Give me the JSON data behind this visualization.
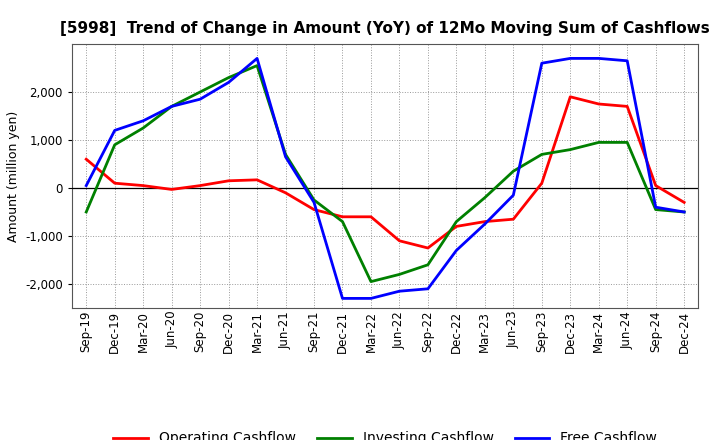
{
  "title": "[5998]  Trend of Change in Amount (YoY) of 12Mo Moving Sum of Cashflows",
  "ylabel": "Amount (million yen)",
  "x_labels": [
    "Sep-19",
    "Dec-19",
    "Mar-20",
    "Jun-20",
    "Sep-20",
    "Dec-20",
    "Mar-21",
    "Jun-21",
    "Sep-21",
    "Dec-21",
    "Mar-22",
    "Jun-22",
    "Sep-22",
    "Dec-22",
    "Mar-23",
    "Jun-23",
    "Sep-23",
    "Dec-23",
    "Mar-24",
    "Jun-24",
    "Sep-24",
    "Dec-24"
  ],
  "operating_cashflow": [
    600,
    100,
    50,
    -30,
    50,
    150,
    170,
    -100,
    -450,
    -600,
    -600,
    -1100,
    -1250,
    -800,
    -700,
    -650,
    100,
    1900,
    1750,
    1700,
    50,
    -300
  ],
  "investing_cashflow": [
    -500,
    900,
    1250,
    1700,
    2000,
    2300,
    2550,
    700,
    -250,
    -700,
    -1950,
    -1800,
    -1600,
    -700,
    -200,
    350,
    700,
    800,
    950,
    950,
    -450,
    -500
  ],
  "free_cashflow": [
    50,
    1200,
    1400,
    1700,
    1850,
    2200,
    2700,
    650,
    -300,
    -2300,
    -2300,
    -2150,
    -2100,
    -1300,
    -750,
    -150,
    2600,
    2700,
    2700,
    2650,
    -400,
    -500
  ],
  "operating_color": "#ff0000",
  "investing_color": "#008000",
  "free_color": "#0000ff",
  "ylim": [
    -2500,
    3000
  ],
  "yticks": [
    -2000,
    -1000,
    0,
    1000,
    2000
  ],
  "background_color": "#ffffff",
  "plot_bg_color": "#ffffff",
  "grid_color": "#999999",
  "title_fontsize": 11,
  "legend_fontsize": 10,
  "tick_fontsize": 8.5
}
